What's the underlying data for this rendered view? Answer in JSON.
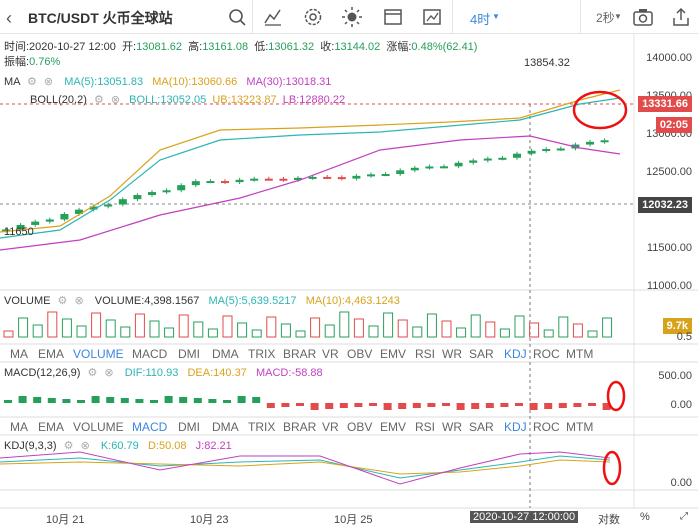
{
  "header": {
    "back_icon": "chevron-left-icon",
    "title": "BTC/USDT 火币全球站",
    "timeframe": "4时",
    "refresh": "2秒",
    "icons": [
      "search-icon",
      "indicator-icon",
      "settings-icon",
      "brightness-icon",
      "window-icon",
      "screenshot-icon",
      "share-icon"
    ]
  },
  "ohlc": {
    "time": "时间:2020-10-27 12:00",
    "open_label": "开:",
    "open": "13081.62",
    "high_label": "高:",
    "high": "13161.08",
    "low_label": "低:",
    "low": "13061.32",
    "close_label": "收:",
    "close": "13144.02",
    "change_label": "涨幅:",
    "change": "0.48%(62.41)",
    "amplitude_label": "振幅:",
    "amplitude": "0.76%"
  },
  "ma_legend": {
    "name": "MA",
    "ma5": "MA(5):13051.83",
    "ma10": "MA(10):13060.66",
    "ma30": "MA(30):13018.31"
  },
  "boll_legend": {
    "name": "BOLL(20,2)",
    "boll": "BOLL:13052.05",
    "ub": "UB:13223.87",
    "lb": "LB:12880.22"
  },
  "main_chart": {
    "price_ticks": [
      "14000.00",
      "13500.00",
      "13000.00",
      "12500.00",
      "12000.00",
      "11500.00",
      "11000.00"
    ],
    "high_label": "13854.32",
    "low_label": "11650",
    "current_price_tag": "13331.66",
    "countdown_tag": "02:05",
    "ref_price_tag": "12032.23"
  },
  "volume_legend": {
    "name": "VOLUME",
    "vol": "VOLUME:4,398.1567",
    "ma5": "MA(5):5,639.5217",
    "ma10": "MA(10):4,463.1243"
  },
  "volume_chart": {
    "ticks": [
      "0.5"
    ],
    "tag": "9.7k"
  },
  "indicator_tabs_1": [
    "MA",
    "EMA",
    "VOLUME",
    "MACD",
    "DMI",
    "DMA",
    "TRIX",
    "BRAR",
    "VR",
    "OBV",
    "EMV",
    "RSI",
    "WR",
    "SAR",
    "KDJ",
    "ROC",
    "MTM"
  ],
  "macd_legend": {
    "name": "MACD(12,26,9)",
    "dif": "DIF:110.93",
    "dea": "DEA:140.37",
    "macd": "MACD:-58.88"
  },
  "macd_chart": {
    "ticks": [
      "500.00",
      "0.00"
    ]
  },
  "indicator_tabs_2": [
    "MA",
    "EMA",
    "VOLUME",
    "MACD",
    "DMI",
    "DMA",
    "TRIX",
    "BRAR",
    "VR",
    "OBV",
    "EMV",
    "RSI",
    "WR",
    "SAR",
    "KDJ",
    "ROC",
    "MTM"
  ],
  "kdj_legend": {
    "name": "KDJ(9,3,3)",
    "k": "K:60.79",
    "d": "D:50.08",
    "j": "J:82.21"
  },
  "kdj_chart": {
    "ticks": [
      "0.00"
    ]
  },
  "x_axis": {
    "dates": [
      "10月 21",
      "10月 23",
      "10月 25"
    ],
    "cursor_date": "2020-10-27 12:00:00",
    "tail": "对数",
    "percent": "%"
  },
  "colors": {
    "up": "#25a05a",
    "down": "#e14b4b",
    "ma5": "#2cb5b5",
    "ma10": "#d9a21b",
    "ma30": "#c23fc2",
    "accent": "#3b87e0"
  }
}
